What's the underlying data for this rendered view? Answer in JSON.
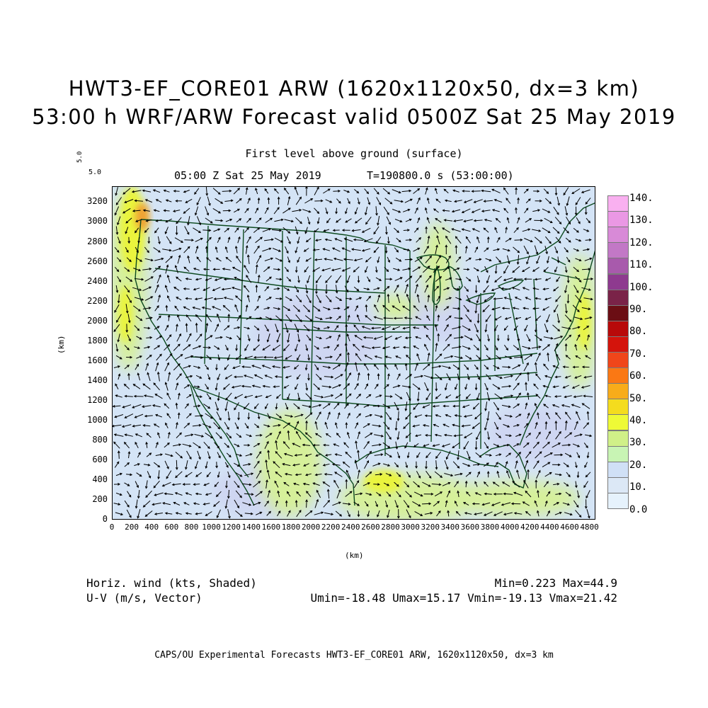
{
  "header": {
    "title_line1": "HWT3-EF_CORE01 ARW (1620x1120x50, dx=3 km)",
    "title_line2": "53:00 h WRF/ARW Forecast valid 0500Z Sat 25 May 2019",
    "level": "First level above ground (surface)",
    "time_label": "05:00 Z Sat 25 May 2019",
    "t_label": "T=190800.0 s (53:00:00)",
    "vector_scale_rot": "5.0",
    "vector_scale": "5.0"
  },
  "axes": {
    "xlabel": "(km)",
    "ylabel": "(km)",
    "x_ticks": [
      "0",
      "200",
      "400",
      "600",
      "800",
      "1000",
      "1200",
      "1400",
      "1600",
      "1800",
      "2000",
      "2200",
      "2400",
      "2600",
      "2800",
      "3000",
      "3200",
      "3400",
      "3600",
      "3800",
      "4000",
      "4200",
      "4400",
      "4600",
      "4800"
    ],
    "y_ticks": [
      "0",
      "200",
      "400",
      "600",
      "800",
      "1000",
      "1200",
      "1400",
      "1600",
      "1800",
      "2000",
      "2200",
      "2400",
      "2600",
      "2800",
      "3000",
      "3200"
    ],
    "x_range": [
      0,
      4860
    ],
    "y_range": [
      0,
      3360
    ]
  },
  "legend": {
    "labels": [
      "140.",
      "130.",
      "120.",
      "110.",
      "100.",
      "90.",
      "80.",
      "70.",
      "60.",
      "50.",
      "40.",
      "30.",
      "20.",
      "10.",
      "0.0"
    ],
    "colors": [
      "#f9b0f0",
      "#ea98e4",
      "#d88ad7",
      "#c278c6",
      "#a85aac",
      "#8e3a8f",
      "#7a2348",
      "#6b0e14",
      "#b80a0a",
      "#d4140c",
      "#f0461a",
      "#fa7814",
      "#f8ac1a",
      "#f4dc1e",
      "#eefa36",
      "#d0f088",
      "#c8f4b4",
      "#d0e0f6",
      "#dce8f6",
      "#e6f2fc"
    ]
  },
  "footer": {
    "field1": "Horiz. wind (kts, Shaded)",
    "field2": "U-V (m/s, Vector)",
    "minmax": "Min=0.223 Max=44.9",
    "uv_minmax": "Umin=-18.48 Umax=15.17 Vmin=-19.13 Vmax=21.42",
    "credit": "CAPS/OU Experimental Forecasts  HWT3-EF_CORE01 ARW, 1620x1120x50, dx=3 km"
  },
  "colors": {
    "background_field": "#d4e4f6",
    "calm_field": "#cfd6f2",
    "moderate_wind": "#d6f09a",
    "strong_wind": "#eaf43c",
    "max_wind": "#f0a030",
    "boundaries": "#0d4a1f",
    "vectors": "#000000"
  }
}
